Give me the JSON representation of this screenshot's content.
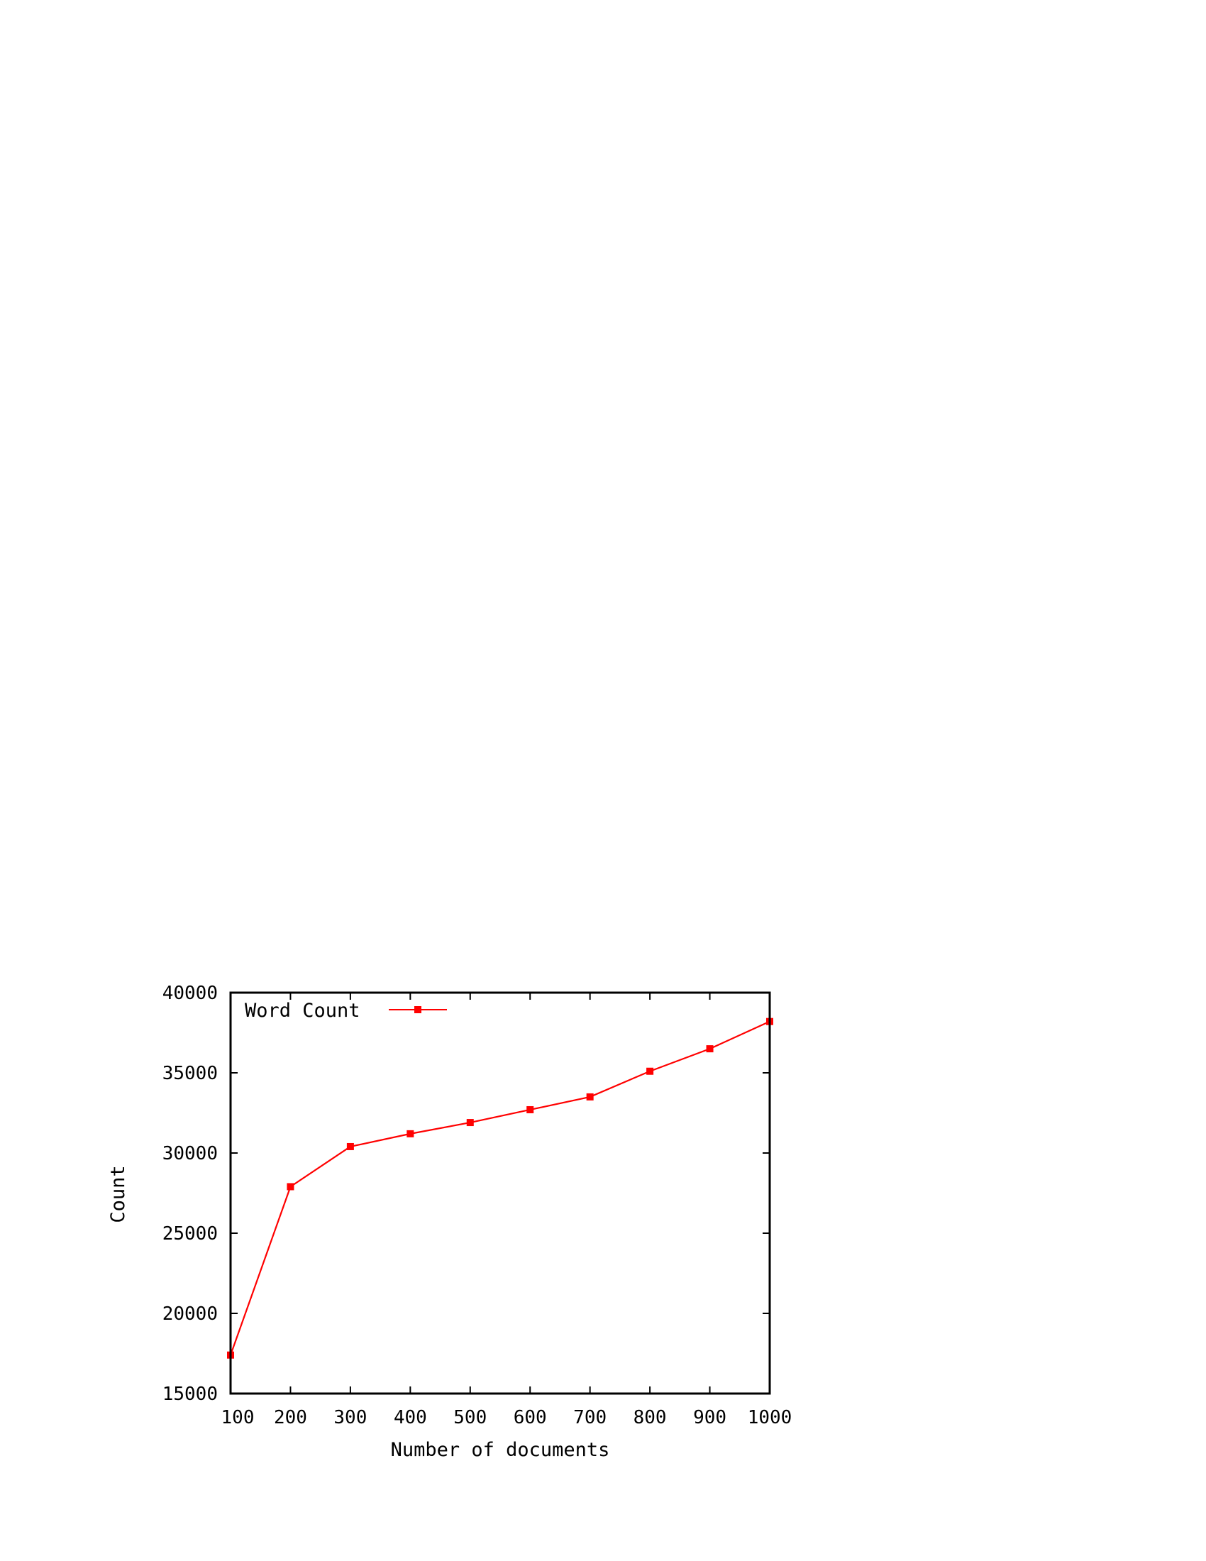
{
  "chart_data": {
    "type": "line",
    "title": "",
    "xlabel": "Number of documents",
    "ylabel": "Count",
    "xlim": [
      100,
      1000
    ],
    "ylim": [
      15000,
      40000
    ],
    "x_ticks": [
      100,
      200,
      300,
      400,
      500,
      600,
      700,
      800,
      900,
      1000
    ],
    "y_ticks": [
      15000,
      20000,
      25000,
      30000,
      35000,
      40000
    ],
    "grid": false,
    "legend_position": "top-left",
    "series": [
      {
        "name": "Word Count",
        "color": "#ff0000",
        "marker": "square",
        "x": [
          100,
          200,
          300,
          400,
          500,
          600,
          700,
          800,
          900,
          1000
        ],
        "y": [
          17400,
          27900,
          30400,
          31200,
          31900,
          32700,
          33500,
          35100,
          36500,
          38200
        ]
      }
    ]
  }
}
